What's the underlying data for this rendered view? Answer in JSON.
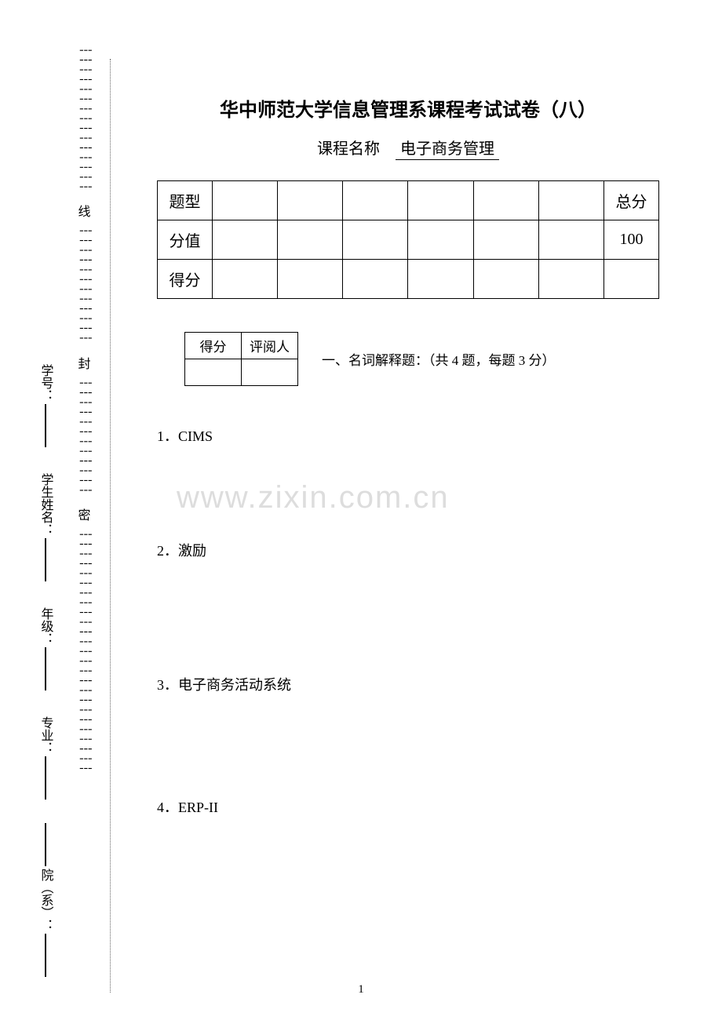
{
  "sidebar": {
    "labels": [
      {
        "text": "院（系）：",
        "line": true
      },
      {
        "text": "专业：",
        "line": true
      },
      {
        "text": "年级：",
        "line": true
      },
      {
        "text": "学生姓名：",
        "line": true
      },
      {
        "text": "学号：",
        "line": true
      }
    ],
    "seal_chars": [
      "密",
      "封",
      "线"
    ]
  },
  "title": "华中师范大学信息管理系课程考试试卷（八）",
  "subtitle_label": "课程名称",
  "course_name": "电子商务管理",
  "score_table": {
    "headers": [
      "题型",
      "",
      "",
      "",
      "",
      "",
      "",
      "总分"
    ],
    "score_row": [
      "分值",
      "",
      "",
      "",
      "",
      "",
      "",
      "100"
    ],
    "got_row": [
      "得分",
      "",
      "",
      "",
      "",
      "",
      "",
      ""
    ]
  },
  "mini_table": {
    "headers": [
      "得分",
      "评阅人"
    ],
    "empty": [
      "",
      ""
    ]
  },
  "section_title": "一、名词解释题：（共 4 题，每题 3 分）",
  "questions": [
    {
      "num": "1",
      "text": "CIMS"
    },
    {
      "num": "2",
      "text": "激励"
    },
    {
      "num": "3",
      "text": "电子商务活动系统"
    },
    {
      "num": "4",
      "text": "ERP-II"
    }
  ],
  "watermark": "www.zixin.com.cn",
  "page_number": "1"
}
